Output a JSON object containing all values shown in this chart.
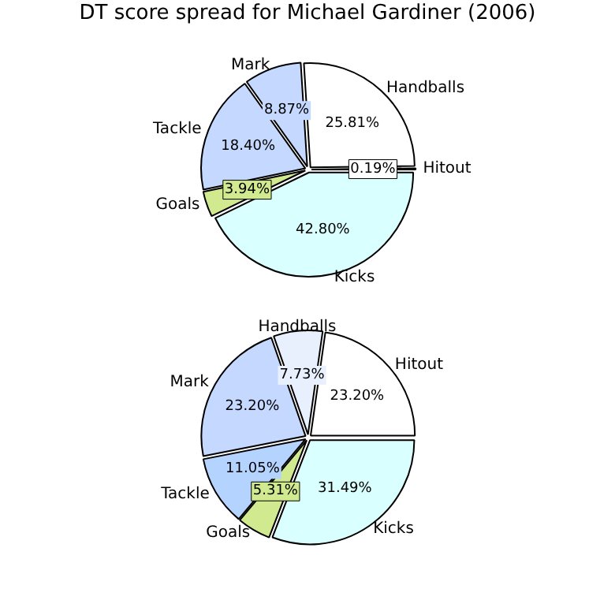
{
  "chart_data": [
    {
      "type": "pie",
      "title": "DT score spread for Michael Gardiner (2006)",
      "categories": [
        "Hitout",
        "Handballs",
        "Mark",
        "Tackle",
        "Goals",
        "Kicks"
      ],
      "values": [
        0.19,
        25.81,
        8.87,
        18.4,
        3.94,
        42.8
      ],
      "colors": [
        "#ffffff",
        "#ffffff",
        "#c5d8ff",
        "#c5d8ff",
        "#d2ea8f",
        "#d9ffff"
      ],
      "value_labels": [
        "0.19%",
        "25.81%",
        "8.87%",
        "18.40%",
        "3.94%",
        "42.80%"
      ]
    },
    {
      "type": "pie",
      "categories": [
        "Hitout",
        "Handballs",
        "Mark",
        "Tackle",
        "Goals",
        "Kicks"
      ],
      "values": [
        23.2,
        7.73,
        23.2,
        11.05,
        5.31,
        31.49
      ],
      "colors": [
        "#ffffff",
        "#e9f0fd",
        "#c5d8ff",
        "#b5d3ff",
        "#d2ea8f",
        "#d9ffff"
      ],
      "value_labels": [
        "23.20%",
        "7.73%",
        "23.20%",
        "11.05%",
        "5.31%",
        "31.49%"
      ]
    }
  ]
}
